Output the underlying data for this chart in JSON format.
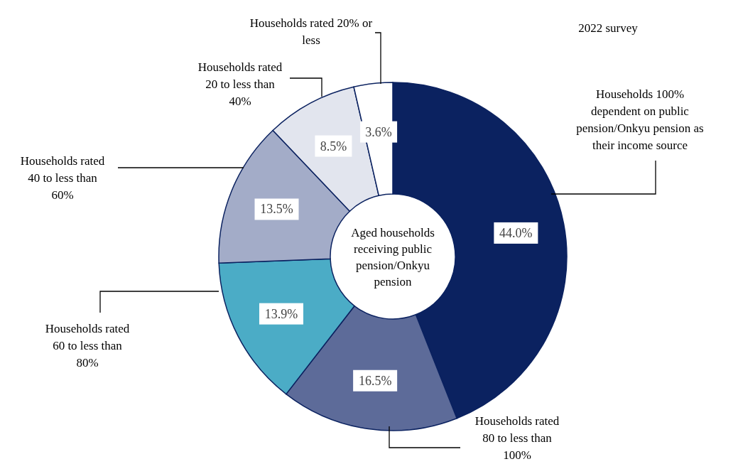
{
  "chart_data": {
    "type": "donut",
    "title": "Aged households receiving public pension/Onkyu pension",
    "subtitle": "2022 survey",
    "categories": [
      "Households 100% dependent on public pension/Onkyu pension as their income source",
      "Households rated 80 to less than 100%",
      "Households rated 60 to less than 80%",
      "Households rated 40 to less than 60%",
      "Households rated 20 to less than 40%",
      "Households rated 20% or less"
    ],
    "values": [
      44.0,
      16.5,
      13.9,
      13.5,
      8.5,
      3.6
    ],
    "value_labels": [
      "44.0%",
      "16.5%",
      "13.9%",
      "13.5%",
      "8.5%",
      "3.6%"
    ],
    "colors": [
      "#0b2260",
      "#5d6b99",
      "#4bacc6",
      "#a3acc8",
      "#e2e5ee",
      "#ffffff"
    ]
  }
}
